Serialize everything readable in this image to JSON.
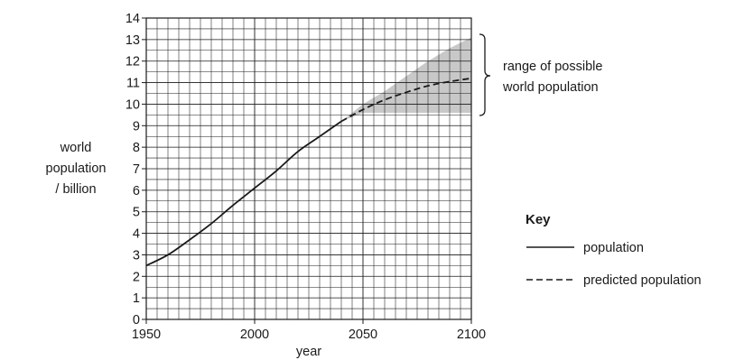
{
  "chart_data": {
    "type": "line",
    "xlabel": "year",
    "ylabel_lines": [
      "world",
      "population",
      "/ billion"
    ],
    "xlim": [
      1950,
      2100
    ],
    "ylim": [
      0,
      14
    ],
    "x_ticks": [
      "1950",
      "2000",
      "2050",
      "2100"
    ],
    "y_ticks": [
      "0",
      "1",
      "2",
      "3",
      "4",
      "5",
      "6",
      "7",
      "8",
      "9",
      "10",
      "11",
      "12",
      "13",
      "14"
    ],
    "grid": true,
    "series": [
      {
        "name": "population",
        "style": "solid",
        "x": [
          1950,
          1960,
          1970,
          1980,
          1990,
          2000,
          2010,
          2020,
          2030,
          2040
        ],
        "y": [
          2.5,
          3.0,
          3.7,
          4.45,
          5.3,
          6.1,
          6.9,
          7.8,
          8.5,
          9.2
        ]
      },
      {
        "name": "predicted population",
        "style": "dashed",
        "x": [
          2040,
          2050,
          2060,
          2070,
          2080,
          2090,
          2100
        ],
        "y": [
          9.2,
          9.75,
          10.2,
          10.55,
          10.85,
          11.05,
          11.2
        ]
      }
    ],
    "range_band": {
      "x": [
        2040,
        2050,
        2060,
        2070,
        2080,
        2090,
        2100
      ],
      "upper": [
        9.2,
        10.0,
        10.6,
        11.3,
        12.0,
        12.6,
        13.1
      ],
      "lower": [
        9.2,
        9.6,
        9.6,
        9.6,
        9.6,
        9.6,
        9.6
      ]
    },
    "annotation": [
      "range of possible",
      "world population"
    ],
    "legend": {
      "title": "Key",
      "placement": "right",
      "items": [
        "population",
        "predicted population"
      ]
    },
    "colors": {
      "line": "#1a1a1a",
      "grid": "#1a1a1a",
      "band": "#c8c8c8"
    }
  }
}
